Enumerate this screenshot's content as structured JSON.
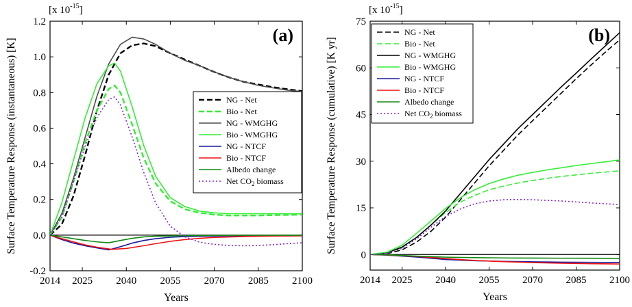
{
  "chart_data": [
    {
      "type": "line",
      "panel_label": "(a)",
      "multiplier": "[x 10",
      "multiplier_exp": "-15",
      "multiplier_close": "]",
      "xlabel": "Years",
      "ylabel": "Surface Temperature Response (instantaneous) [K]",
      "xlim": [
        2014,
        2100
      ],
      "ylim": [
        -0.2,
        1.2
      ],
      "x_ticks": [
        2014,
        2025,
        2040,
        2055,
        2070,
        2085,
        2100
      ],
      "y_ticks": [
        -0.2,
        0.0,
        0.2,
        0.4,
        0.6,
        0.8,
        1.0,
        1.2
      ],
      "y_tick_labels": [
        "-0.2",
        "0.0",
        "0.2",
        "0.4",
        "0.6",
        "0.8",
        "1.0",
        "1.2"
      ],
      "legend_position": "right-center",
      "series": [
        {
          "name": "NG - Net",
          "color": "#000000",
          "dash": "dash",
          "width": 2.4,
          "x": [
            2014,
            2018,
            2022,
            2026,
            2030,
            2034,
            2038,
            2042,
            2046,
            2050,
            2055,
            2060,
            2065,
            2070,
            2075,
            2080,
            2085,
            2090,
            2095,
            2100
          ],
          "y": [
            0.0,
            0.06,
            0.22,
            0.45,
            0.7,
            0.9,
            1.02,
            1.065,
            1.075,
            1.06,
            1.02,
            0.985,
            0.95,
            0.915,
            0.885,
            0.86,
            0.845,
            0.83,
            0.818,
            0.808
          ]
        },
        {
          "name": "Bio - Net",
          "color": "#33ee33",
          "dash": "dash",
          "width": 2.4,
          "x": [
            2014,
            2018,
            2022,
            2026,
            2030,
            2034,
            2036,
            2038,
            2042,
            2046,
            2050,
            2055,
            2060,
            2065,
            2070,
            2075,
            2080,
            2085,
            2090,
            2095,
            2100
          ],
          "y": [
            0.0,
            0.1,
            0.3,
            0.52,
            0.7,
            0.82,
            0.84,
            0.8,
            0.62,
            0.43,
            0.29,
            0.19,
            0.145,
            0.125,
            0.115,
            0.11,
            0.11,
            0.11,
            0.112,
            0.113,
            0.115
          ]
        },
        {
          "name": "NG - WMGHG",
          "color": "#4d4d4d",
          "dash": "solid",
          "width": 1.6,
          "x": [
            2014,
            2018,
            2022,
            2026,
            2030,
            2034,
            2038,
            2042,
            2046,
            2050,
            2055,
            2060,
            2065,
            2070,
            2075,
            2080,
            2085,
            2090,
            2095,
            2100
          ],
          "y": [
            0.0,
            0.12,
            0.32,
            0.55,
            0.78,
            0.96,
            1.07,
            1.11,
            1.1,
            1.07,
            1.02,
            0.98,
            0.95,
            0.915,
            0.885,
            0.86,
            0.84,
            0.826,
            0.813,
            0.805
          ]
        },
        {
          "name": "Bio - WMGHG",
          "color": "#33ee33",
          "dash": "solid",
          "width": 1.6,
          "x": [
            2014,
            2018,
            2022,
            2026,
            2030,
            2034,
            2036,
            2038,
            2042,
            2046,
            2050,
            2055,
            2060,
            2065,
            2070,
            2075,
            2080,
            2085,
            2090,
            2095,
            2100
          ],
          "y": [
            0.0,
            0.18,
            0.42,
            0.66,
            0.85,
            0.95,
            0.965,
            0.92,
            0.72,
            0.5,
            0.33,
            0.21,
            0.16,
            0.135,
            0.125,
            0.12,
            0.12,
            0.12,
            0.12,
            0.12,
            0.12
          ]
        },
        {
          "name": "NG - NTCF",
          "color": "#1a1a99",
          "dash": "solid",
          "width": 1.6,
          "x": [
            2014,
            2018,
            2022,
            2026,
            2030,
            2034,
            2038,
            2042,
            2046,
            2050,
            2055,
            2060,
            2070,
            2080,
            2090,
            2100
          ],
          "y": [
            0.0,
            -0.025,
            -0.045,
            -0.06,
            -0.072,
            -0.083,
            -0.065,
            -0.045,
            -0.03,
            -0.02,
            -0.012,
            -0.008,
            -0.005,
            -0.003,
            -0.002,
            -0.002
          ]
        },
        {
          "name": "Bio - NTCF",
          "color": "#ee1111",
          "dash": "solid",
          "width": 1.6,
          "x": [
            2014,
            2018,
            2022,
            2026,
            2030,
            2035,
            2040,
            2045,
            2050,
            2055,
            2060,
            2065,
            2070,
            2080,
            2090,
            2100
          ],
          "y": [
            0.0,
            -0.02,
            -0.038,
            -0.055,
            -0.068,
            -0.08,
            -0.075,
            -0.062,
            -0.048,
            -0.035,
            -0.025,
            -0.018,
            -0.013,
            -0.008,
            -0.005,
            -0.004
          ]
        },
        {
          "name": "Albedo change",
          "color": "#118811",
          "dash": "solid",
          "width": 1.6,
          "x": [
            2014,
            2018,
            2022,
            2026,
            2030,
            2034,
            2038,
            2042,
            2046,
            2050,
            2060,
            2070,
            2080,
            2090,
            2100
          ],
          "y": [
            0.0,
            -0.01,
            -0.02,
            -0.03,
            -0.038,
            -0.043,
            -0.03,
            -0.018,
            -0.01,
            -0.006,
            -0.003,
            -0.002,
            -0.001,
            -0.001,
            -0.001
          ]
        },
        {
          "name": "Net CO",
          "name_sub": "2",
          "name_after": " biomass",
          "color": "#8822dd",
          "dash": "dot",
          "width": 1.6,
          "x": [
            2014,
            2018,
            2022,
            2026,
            2030,
            2034,
            2036,
            2038,
            2042,
            2046,
            2050,
            2055,
            2060,
            2065,
            2070,
            2075,
            2080,
            2085,
            2090,
            2095,
            2100
          ],
          "y": [
            0.0,
            0.1,
            0.3,
            0.5,
            0.66,
            0.76,
            0.775,
            0.73,
            0.55,
            0.35,
            0.18,
            0.05,
            -0.01,
            -0.04,
            -0.052,
            -0.058,
            -0.06,
            -0.058,
            -0.054,
            -0.048,
            -0.043
          ]
        }
      ]
    },
    {
      "type": "line",
      "panel_label": "(b)",
      "multiplier": "[x 10",
      "multiplier_exp": "-15",
      "multiplier_close": "]",
      "xlabel": "Years",
      "ylabel": "Surface Temperature Response (cumulative) [K yr]",
      "xlim": [
        2014,
        2100
      ],
      "ylim": [
        -5,
        75
      ],
      "x_ticks": [
        2014,
        2025,
        2040,
        2055,
        2070,
        2085,
        2100
      ],
      "y_ticks": [
        0,
        15,
        30,
        45,
        60,
        75
      ],
      "y_tick_labels": [
        "0",
        "15",
        "30",
        "45",
        "60",
        "75"
      ],
      "legend_position": "top-left",
      "series": [
        {
          "name": "NG - Net",
          "color": "#000000",
          "dash": "dash",
          "width": 1.6,
          "x": [
            2014,
            2020,
            2025,
            2030,
            2035,
            2040,
            2045,
            2050,
            2055,
            2060,
            2065,
            2070,
            2075,
            2080,
            2085,
            2090,
            2095,
            2100
          ],
          "y": [
            0,
            0.3,
            1.5,
            4,
            7.5,
            12,
            17.5,
            23,
            28.5,
            33.5,
            38.5,
            43,
            47.5,
            52,
            56.5,
            60.8,
            65,
            69
          ]
        },
        {
          "name": "Bio - Net",
          "color": "#33ee33",
          "dash": "dash",
          "width": 1.6,
          "x": [
            2014,
            2020,
            2025,
            2030,
            2035,
            2040,
            2045,
            2050,
            2055,
            2060,
            2065,
            2070,
            2075,
            2080,
            2085,
            2090,
            2095,
            2100
          ],
          "y": [
            0,
            0.5,
            2.2,
            5.5,
            9.5,
            13.5,
            16.8,
            19,
            20.8,
            22,
            23,
            23.8,
            24.5,
            25.1,
            25.6,
            26.1,
            26.5,
            26.9
          ]
        },
        {
          "name": "NG - WMGHG",
          "color": "#000000",
          "dash": "solid",
          "width": 1.6,
          "x": [
            2014,
            2020,
            2025,
            2030,
            2035,
            2040,
            2045,
            2050,
            2055,
            2060,
            2065,
            2070,
            2075,
            2080,
            2085,
            2090,
            2095,
            2100
          ],
          "y": [
            0,
            0.6,
            2.4,
            5.5,
            9.5,
            14,
            19.5,
            25,
            30.5,
            35.5,
            40.5,
            45,
            49.5,
            54,
            58.3,
            62.7,
            67,
            71.3
          ]
        },
        {
          "name": "Bio - WMGHG",
          "color": "#33ee33",
          "dash": "solid",
          "width": 1.6,
          "x": [
            2014,
            2020,
            2025,
            2030,
            2035,
            2040,
            2045,
            2050,
            2055,
            2060,
            2065,
            2070,
            2075,
            2080,
            2085,
            2090,
            2095,
            2100
          ],
          "y": [
            0,
            0.8,
            3,
            6.8,
            10.8,
            14.8,
            18.2,
            20.8,
            22.8,
            24.3,
            25.5,
            26.4,
            27.2,
            27.9,
            28.6,
            29.2,
            29.8,
            30.4
          ]
        },
        {
          "name": "NG - NTCF",
          "color": "#1a1a99",
          "dash": "solid",
          "width": 1.6,
          "x": [
            2014,
            2020,
            2030,
            2040,
            2050,
            2060,
            2070,
            2080,
            2090,
            2100
          ],
          "y": [
            0,
            -0.2,
            -0.8,
            -1.6,
            -2.0,
            -2.2,
            -2.35,
            -2.45,
            -2.5,
            -2.55
          ]
        },
        {
          "name": "Bio - NTCF",
          "color": "#ee1111",
          "dash": "solid",
          "width": 1.6,
          "x": [
            2014,
            2020,
            2030,
            2040,
            2050,
            2060,
            2070,
            2080,
            2090,
            2100
          ],
          "y": [
            0,
            -0.15,
            -0.6,
            -1.3,
            -1.9,
            -2.3,
            -2.6,
            -2.8,
            -2.95,
            -3.05
          ]
        },
        {
          "name": "Albedo change",
          "color": "#118811",
          "dash": "solid",
          "width": 1.6,
          "x": [
            2014,
            2020,
            2030,
            2040,
            2050,
            2060,
            2070,
            2080,
            2090,
            2100
          ],
          "y": [
            0,
            -0.1,
            -0.5,
            -0.85,
            -1.0,
            -1.1,
            -1.15,
            -1.18,
            -1.2,
            -1.22
          ]
        },
        {
          "name": "Net CO",
          "name_sub": "2",
          "name_after": " biomass",
          "color": "#8822dd",
          "dash": "dot",
          "width": 1.6,
          "x": [
            2014,
            2020,
            2025,
            2030,
            2035,
            2040,
            2045,
            2050,
            2055,
            2060,
            2065,
            2070,
            2075,
            2080,
            2085,
            2090,
            2095,
            2100
          ],
          "y": [
            0,
            0.4,
            2,
            5,
            8.8,
            12.2,
            14.6,
            16.3,
            17.2,
            17.6,
            17.7,
            17.6,
            17.4,
            17.2,
            16.9,
            16.6,
            16.3,
            16.1
          ]
        }
      ]
    }
  ]
}
